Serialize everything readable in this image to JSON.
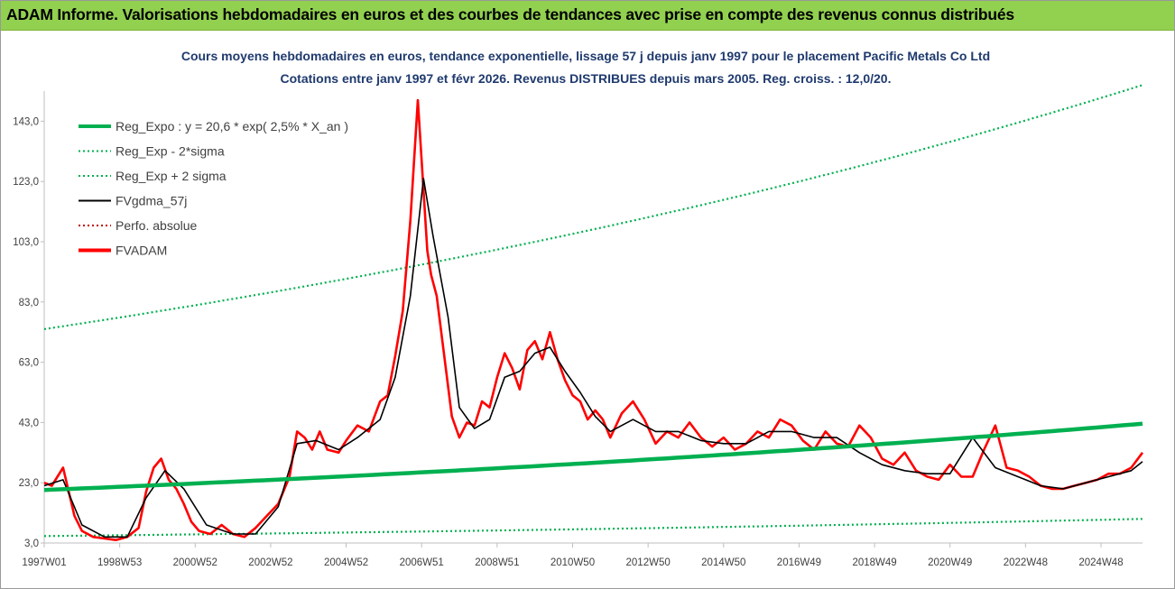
{
  "header": {
    "title": "ADAM Informe. Valorisations hebdomadaires en euros et des courbes de tendances avec prise en compte des revenus connus distribués"
  },
  "colors": {
    "header_bg": "#92d050",
    "trend": "#00b050",
    "sigma": "#00b050",
    "smoothed": "#000000",
    "absolute": "#c00000",
    "price": "#ff0000",
    "title_text": "#1f3a6e"
  },
  "chart_data": {
    "type": "line",
    "title_lines": [
      "Cours moyens hebdomadaires en euros, tendance exponentielle, lissage 57 j depuis janv 1997 pour le placement Pacific Metals Co Ltd",
      "Cotations entre janv 1997 et févr 2026. Revenus DISTRIBUES depuis mars 2005. Reg. croiss. : 12,0/20."
    ],
    "xlabel": "",
    "ylabel": "",
    "ylim": [
      3,
      153
    ],
    "y_ticks": [
      "3,0",
      "23,0",
      "43,0",
      "63,0",
      "83,0",
      "103,0",
      "123,0",
      "143,0"
    ],
    "x_ticks": [
      "1997W01",
      "1998W53",
      "2000W52",
      "2002W52",
      "2004W52",
      "2006W51",
      "2008W51",
      "2010W50",
      "2012W50",
      "2014W50",
      "2016W49",
      "2018W49",
      "2020W49",
      "2022W48",
      "2024W48"
    ],
    "x_tick_years": [
      1997.0,
      1999.0,
      2001.0,
      2003.0,
      2005.0,
      2007.0,
      2009.0,
      2011.0,
      2013.0,
      2015.0,
      2017.0,
      2019.0,
      2021.0,
      2023.0,
      2025.0
    ],
    "x_range_years": [
      1997.0,
      2026.1
    ],
    "grid": false,
    "legend_position": "top-left",
    "legend": [
      {
        "name": "Reg_Expo : y = 20,6 * exp( 2,5% *  X_an )",
        "style": "solid-thick",
        "color": "#00b050"
      },
      {
        "name": "Reg_Exp - 2*sigma",
        "style": "dotted",
        "color": "#00b050"
      },
      {
        "name": "Reg_Exp + 2 sigma",
        "style": "dotted",
        "color": "#00b050"
      },
      {
        "name": "FVgdma_57j",
        "style": "solid",
        "color": "#000000"
      },
      {
        "name": "Perfo. absolue",
        "style": "dotted",
        "color": "#c00000"
      },
      {
        "name": "FVADAM",
        "style": "solid-thick",
        "color": "#ff0000"
      }
    ],
    "series": [
      {
        "name": "Reg_Expo : y = 20,6 * exp( 2,5% *  X_an )",
        "x": [
          1997.0,
          2026.1
        ],
        "y": [
          20.6,
          42.6
        ]
      },
      {
        "name": "Reg_Exp - 2*sigma",
        "x": [
          1997.0,
          2026.1
        ],
        "y": [
          5.3,
          11.0
        ]
      },
      {
        "name": "Reg_Exp + 2 sigma",
        "x": [
          1997.0,
          2026.1
        ],
        "y": [
          74.0,
          155.0
        ]
      },
      {
        "name": "FVADAM",
        "x": [
          1997.0,
          1997.2,
          1997.5,
          1997.8,
          1998.0,
          1998.3,
          1998.6,
          1998.9,
          1999.2,
          1999.5,
          1999.7,
          1999.9,
          2000.1,
          2000.3,
          2000.5,
          2000.7,
          2000.9,
          2001.1,
          2001.4,
          2001.7,
          2002.0,
          2002.3,
          2002.6,
          2002.9,
          2003.2,
          2003.5,
          2003.7,
          2003.9,
          2004.1,
          2004.3,
          2004.5,
          2004.8,
          2005.0,
          2005.3,
          2005.6,
          2005.9,
          2006.1,
          2006.3,
          2006.5,
          2006.7,
          2006.9,
          2007.05,
          2007.15,
          2007.25,
          2007.4,
          2007.6,
          2007.8,
          2008.0,
          2008.2,
          2008.4,
          2008.6,
          2008.8,
          2009.0,
          2009.2,
          2009.4,
          2009.6,
          2009.8,
          2010.0,
          2010.2,
          2010.4,
          2010.6,
          2010.8,
          2011.0,
          2011.2,
          2011.4,
          2011.6,
          2011.8,
          2012.0,
          2012.3,
          2012.6,
          2012.9,
          2013.2,
          2013.5,
          2013.8,
          2014.1,
          2014.4,
          2014.7,
          2015.0,
          2015.3,
          2015.6,
          2015.9,
          2016.2,
          2016.5,
          2016.8,
          2017.1,
          2017.4,
          2017.7,
          2018.0,
          2018.3,
          2018.6,
          2018.9,
          2019.2,
          2019.5,
          2019.8,
          2020.1,
          2020.4,
          2020.7,
          2021.0,
          2021.3,
          2021.6,
          2021.9,
          2022.2,
          2022.5,
          2022.8,
          2023.1,
          2023.4,
          2023.7,
          2024.0,
          2024.3,
          2024.6,
          2024.9,
          2025.2,
          2025.5,
          2025.8,
          2026.1
        ],
        "y": [
          23,
          22,
          28,
          12,
          7,
          5,
          4.5,
          4,
          5,
          8,
          20,
          28,
          31,
          24,
          21,
          16,
          10,
          7,
          6,
          9,
          6,
          5,
          8,
          12,
          16,
          25,
          40,
          38,
          34,
          40,
          34,
          33,
          37,
          42,
          40,
          50,
          52,
          65,
          80,
          110,
          150,
          120,
          100,
          92,
          85,
          65,
          45,
          38,
          43,
          42,
          50,
          48,
          58,
          66,
          61,
          54,
          67,
          70,
          64,
          73,
          64,
          57,
          52,
          50,
          44,
          47,
          44,
          38,
          46,
          50,
          44,
          36,
          40,
          38,
          43,
          38,
          35,
          38,
          34,
          36,
          40,
          38,
          44,
          42,
          37,
          34,
          40,
          36,
          35,
          42,
          38,
          31,
          29,
          33,
          27,
          25,
          24,
          29,
          25,
          25,
          34,
          42,
          28,
          27,
          25,
          22,
          21,
          21,
          22,
          23,
          24,
          26,
          26,
          28,
          33
        ]
      },
      {
        "name": "FVgdma_57j",
        "x": [
          1997.0,
          1997.5,
          1998.0,
          1998.6,
          1999.2,
          1999.7,
          2000.2,
          2000.7,
          2001.3,
          2002.0,
          2002.6,
          2003.2,
          2003.7,
          2004.2,
          2004.8,
          2005.3,
          2005.9,
          2006.3,
          2006.7,
          2007.05,
          2007.3,
          2007.7,
          2008.0,
          2008.4,
          2008.8,
          2009.2,
          2009.6,
          2010.0,
          2010.4,
          2010.8,
          2011.2,
          2011.6,
          2012.0,
          2012.6,
          2013.2,
          2013.8,
          2014.4,
          2015.0,
          2015.6,
          2016.2,
          2016.8,
          2017.4,
          2018.0,
          2018.6,
          2019.2,
          2019.8,
          2020.4,
          2021.0,
          2021.6,
          2022.2,
          2022.8,
          2023.4,
          2024.0,
          2024.6,
          2025.2,
          2025.8,
          2026.1
        ],
        "y": [
          22,
          24,
          9,
          5,
          5,
          18,
          27,
          21,
          9,
          6,
          6,
          15,
          36,
          37,
          34,
          38,
          44,
          58,
          85,
          124,
          105,
          78,
          48,
          41,
          44,
          58,
          60,
          66,
          68,
          60,
          53,
          45,
          40,
          44,
          40,
          40,
          37,
          36,
          36,
          40,
          40,
          38,
          38,
          33,
          29,
          27,
          26,
          26,
          38,
          28,
          25,
          22,
          21,
          23,
          25,
          27,
          30
        ]
      }
    ]
  }
}
